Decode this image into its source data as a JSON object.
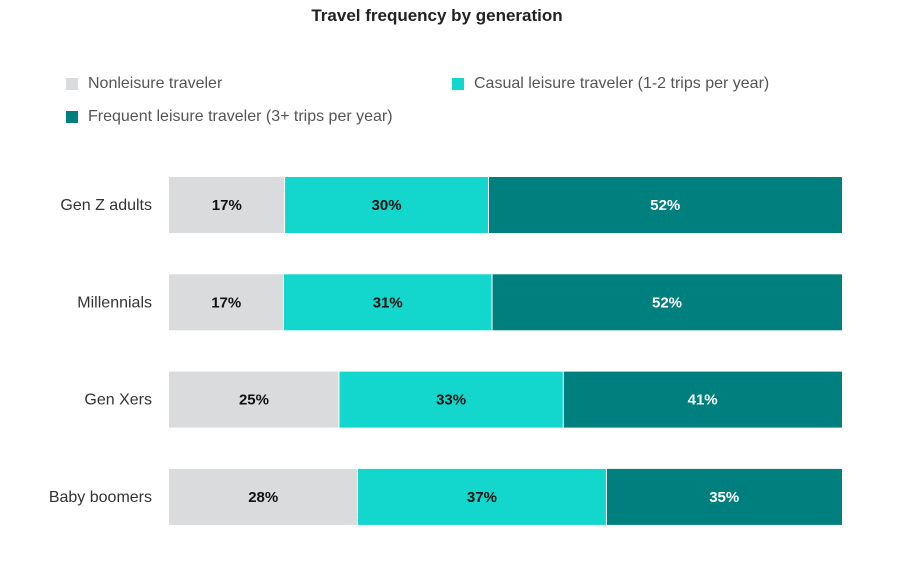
{
  "chart_data": {
    "type": "bar",
    "orientation": "horizontal",
    "stacked": true,
    "title": "Travel frequency by generation",
    "categories": [
      "Gen Z adults",
      "Millennials",
      "Gen Xers",
      "Baby boomers"
    ],
    "series": [
      {
        "name": "Nonleisure traveler",
        "color": "#d9dbdc",
        "label_color": "#111111",
        "values": [
          17,
          17,
          25,
          28
        ]
      },
      {
        "name": "Casual leisure traveler (1-2 trips per year)",
        "color": "#13d6cc",
        "label_color": "#111111",
        "values": [
          30,
          31,
          33,
          37
        ]
      },
      {
        "name": "Frequent leisure traveler (3+ trips per year)",
        "color": "#007f7f",
        "label_color": "#ffffff",
        "values": [
          52,
          52,
          41,
          35
        ]
      }
    ],
    "value_suffix": "%",
    "legend_position": "top",
    "grid": false
  }
}
